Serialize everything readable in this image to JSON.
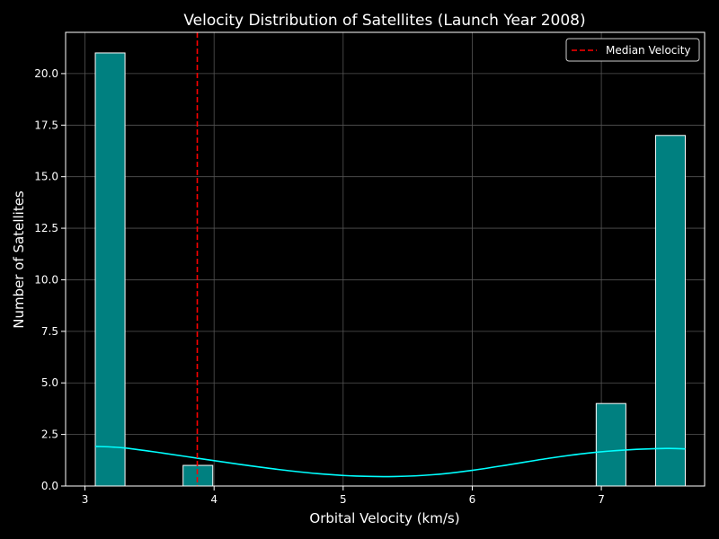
{
  "chart_data": {
    "type": "bar",
    "title": "Velocity Distribution of Satellites (Launch Year 2008)",
    "xlabel": "Orbital Velocity (km/s)",
    "ylabel": "Number of Satellites",
    "xlim": [
      2.85,
      7.8
    ],
    "ylim": [
      0,
      22
    ],
    "xticks": [
      3,
      4,
      5,
      6,
      7
    ],
    "xtick_labels": [
      "3",
      "4",
      "5",
      "6",
      "7"
    ],
    "yticks": [
      0,
      2.5,
      5,
      7.5,
      10,
      12.5,
      15,
      17.5,
      20
    ],
    "ytick_labels": [
      "0.0",
      "2.5",
      "5.0",
      "7.5",
      "10.0",
      "12.5",
      "15.0",
      "17.5",
      "20.0"
    ],
    "bins": [
      {
        "x0": 3.08,
        "x1": 3.31,
        "count": 21
      },
      {
        "x0": 3.76,
        "x1": 3.99,
        "count": 1
      },
      {
        "x0": 6.96,
        "x1": 7.19,
        "count": 4
      },
      {
        "x0": 7.42,
        "x1": 7.65,
        "count": 17
      }
    ],
    "kde": {
      "x": [
        3.08,
        3.3,
        3.6,
        3.9,
        4.2,
        4.5,
        4.8,
        5.1,
        5.4,
        5.7,
        6.0,
        6.3,
        6.6,
        6.9,
        7.2,
        7.5,
        7.65
      ],
      "y": [
        1.92,
        1.85,
        1.6,
        1.32,
        1.05,
        0.8,
        0.6,
        0.48,
        0.46,
        0.55,
        0.76,
        1.05,
        1.35,
        1.6,
        1.75,
        1.82,
        1.8
      ]
    },
    "median": 3.87,
    "legend": {
      "position": "top-right",
      "entries": [
        {
          "label": "Median Velocity",
          "color": "#ff0000",
          "style": "dashed"
        }
      ]
    },
    "grid": true,
    "colors": {
      "bar_fill": "#008080",
      "bar_edge": "#ffffff",
      "kde": "#00ffff",
      "median": "#ff0000",
      "grid": "#555555"
    }
  }
}
